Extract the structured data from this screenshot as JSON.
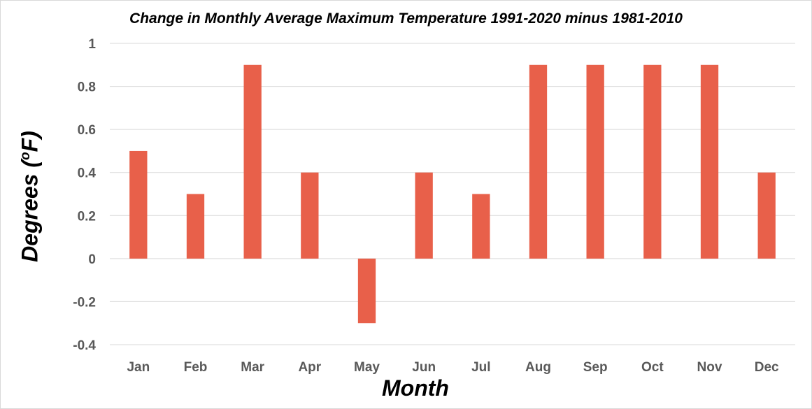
{
  "chart_data": {
    "type": "bar",
    "title": "Change in Monthly Average Maximum Temperature 1991-2020 minus 1981-2010",
    "xlabel": "Month",
    "ylabel": "Degrees (",
    "ylabel_sup": "o",
    "ylabel_unit": "F)",
    "categories": [
      "Jan",
      "Feb",
      "Mar",
      "Apr",
      "May",
      "Jun",
      "Jul",
      "Aug",
      "Sep",
      "Oct",
      "Nov",
      "Dec"
    ],
    "values": [
      0.5,
      0.3,
      0.9,
      0.4,
      -0.3,
      0.4,
      0.3,
      0.9,
      0.9,
      0.9,
      0.9,
      0.4
    ],
    "ylim": [
      -0.4,
      1
    ],
    "yticks": [
      "-0.4",
      "-0.2",
      "0",
      "0.2",
      "0.4",
      "0.6",
      "0.8",
      "1"
    ],
    "grid": true,
    "legend": "none",
    "bar_color": "#E8604A",
    "grid_color": "#d9d9d9"
  }
}
